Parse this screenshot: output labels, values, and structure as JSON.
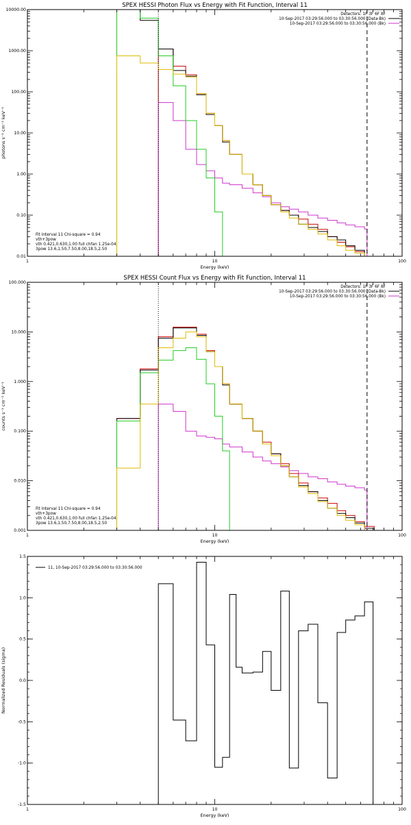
{
  "colors": {
    "data_minus_bk": "#000000",
    "background": "#cc33cc",
    "vth_3pow": "#cc0000",
    "vth": "#22cc22",
    "pow": "#ddbb00",
    "frame": "#000000"
  },
  "chart_data": [
    {
      "type": "line",
      "step": true,
      "title": "SPEX HESSI Photon Flux vs Energy with Fit Function, Interval 11",
      "xlabel": "Energy (keV)",
      "ylabel": "photons s⁻¹ cm⁻² keV⁻¹",
      "xscale": "log",
      "yscale": "log",
      "xlim": [
        1,
        100
      ],
      "ylim": [
        0.01,
        10000
      ],
      "xticks": [
        {
          "v": 1,
          "label": "1"
        },
        {
          "v": 10,
          "label": "10"
        },
        {
          "v": 100,
          "label": "100"
        }
      ],
      "yticks": [
        {
          "v": 0.01,
          "label": "0.01"
        },
        {
          "v": 0.1,
          "label": "0.10"
        },
        {
          "v": 1,
          "label": "1.00"
        },
        {
          "v": 10,
          "label": "10.00"
        },
        {
          "v": 100,
          "label": "100.00"
        },
        {
          "v": 1000,
          "label": "1000.00"
        },
        {
          "v": 10000,
          "label": "10000.00"
        }
      ],
      "vlines": [
        {
          "x": 5.0,
          "style": "dotted",
          "color": "#000000"
        },
        {
          "x": 65,
          "style": "dashed",
          "color": "#000000"
        }
      ],
      "legend_top": [
        {
          "text": "Detectors: 1F 3F 6F 8F",
          "color": "#000000"
        },
        {
          "text": "10-Sep-2017 03:29:56.000 to 03:30:56.000 (Data-Bk)",
          "color": "#000000"
        },
        {
          "text": "10-Sep-2017 03:29:56.000 to 03:30:56.000 (Bk)",
          "color": "#cc33cc"
        }
      ],
      "legend_bottom": [
        {
          "text": "Fit Interval 11   Chi-square = 0.94",
          "color": "#000000"
        },
        {
          "text": "vth+3pow",
          "color": "#cc0000"
        },
        {
          "text": "vth 0.421,0.630,1.00  full chfan 1.25e-04",
          "color": "#22cc22"
        },
        {
          "text": "3pow 13.6,1.50,7.50,8.00,18.5,2.50",
          "color": "#ddbb00"
        }
      ],
      "series": [
        {
          "color": "#cc0000",
          "edges": [
            5,
            6,
            7,
            8,
            9,
            10,
            11,
            12,
            14,
            16,
            18,
            20,
            22.5,
            25,
            28,
            31.5,
            35.5,
            40,
            45,
            50,
            56,
            63,
            71
          ],
          "values": [
            1100,
            420,
            260,
            90,
            30,
            15,
            6.5,
            3.0,
            1.0,
            0.55,
            0.3,
            0.18,
            0.13,
            0.1,
            0.08,
            0.06,
            0.045,
            0.03,
            0.022,
            0.017,
            0.013,
            0.01
          ]
        },
        {
          "color": "#000000",
          "edges": [
            3,
            4,
            5,
            6,
            7,
            8,
            9,
            10,
            11,
            12,
            14,
            16,
            18,
            20,
            22.5,
            25,
            28,
            31.5,
            35.5,
            40,
            45,
            50,
            56,
            63,
            71
          ],
          "values": [
            10000,
            5500,
            1100,
            330,
            240,
            85,
            28,
            15,
            6,
            3.0,
            1.0,
            0.55,
            0.3,
            0.18,
            0.13,
            0.1,
            0.06,
            0.05,
            0.04,
            0.03,
            0.025,
            0.018,
            0.014,
            0.01
          ]
        },
        {
          "color": "#cc33cc",
          "edges": [
            5,
            6,
            7,
            8,
            9,
            10,
            11,
            12,
            14,
            16,
            18,
            20,
            22.5,
            25,
            28,
            31.5,
            35.5,
            40,
            45,
            50,
            56,
            63,
            65
          ],
          "values": [
            55,
            20,
            4.0,
            1.7,
            1.2,
            0.8,
            0.6,
            0.55,
            0.45,
            0.35,
            0.28,
            0.2,
            0.16,
            0.14,
            0.12,
            0.1,
            0.085,
            0.075,
            0.065,
            0.058,
            0.052,
            0.046
          ]
        },
        {
          "color": "#22cc22",
          "edges": [
            3,
            4,
            5,
            6,
            7,
            8,
            9,
            10,
            11,
            12
          ],
          "values": [
            10000,
            6200,
            750,
            140,
            20,
            4.0,
            0.8,
            0.12,
            0.01
          ]
        },
        {
          "color": "#ddbb00",
          "edges": [
            3,
            4,
            5,
            6,
            7,
            8,
            9,
            10,
            11,
            12,
            14,
            16,
            18,
            20,
            22.5,
            25,
            28,
            31.5,
            35.5,
            40,
            45,
            50,
            56,
            63,
            71
          ],
          "values": [
            750,
            500,
            350,
            270,
            230,
            90,
            30,
            15,
            6.5,
            3.0,
            1.0,
            0.55,
            0.3,
            0.18,
            0.12,
            0.085,
            0.06,
            0.045,
            0.035,
            0.025,
            0.018,
            0.014,
            0.012,
            0.01
          ]
        }
      ]
    },
    {
      "type": "line",
      "step": true,
      "title": "SPEX HESSI Count Flux vs Energy with Fit Function, Interval 11",
      "xlabel": "Energy (keV)",
      "ylabel": "counts s⁻¹ cm⁻² keV⁻¹",
      "xscale": "log",
      "yscale": "log",
      "xlim": [
        1,
        100
      ],
      "ylim": [
        0.001,
        100
      ],
      "xticks": [
        {
          "v": 1,
          "label": "1"
        },
        {
          "v": 10,
          "label": "10"
        },
        {
          "v": 100,
          "label": "100"
        }
      ],
      "yticks": [
        {
          "v": 0.001,
          "label": "0.001"
        },
        {
          "v": 0.01,
          "label": "0.010"
        },
        {
          "v": 0.1,
          "label": "0.100"
        },
        {
          "v": 1,
          "label": "1.000"
        },
        {
          "v": 10,
          "label": "10.000"
        },
        {
          "v": 100,
          "label": "100.000"
        }
      ],
      "vlines": [
        {
          "x": 5.0,
          "style": "dotted",
          "color": "#000000"
        },
        {
          "x": 65,
          "style": "dashed",
          "color": "#000000"
        }
      ],
      "legend_top": [
        {
          "text": "Detectors: 1F 3F 6F 8F",
          "color": "#000000"
        },
        {
          "text": "10-Sep-2017 03:29:56.000 to 03:30:56.000 (Data-Bk)",
          "color": "#000000"
        },
        {
          "text": "10-Sep-2017 03:29:56.000 to 03:30:56.000 (Bk)",
          "color": "#cc33cc"
        }
      ],
      "legend_bottom": [
        {
          "text": "Fit Interval 11   Chi-square = 0.94",
          "color": "#000000"
        },
        {
          "text": "vth+3pow",
          "color": "#cc0000"
        },
        {
          "text": "vth 0.421,0.630,1.00  full chfan 1.25e-04",
          "color": "#22cc22"
        },
        {
          "text": "3pow 13.6,1.50,7.50,8.00,18.5,2.50",
          "color": "#ddbb00"
        }
      ],
      "series": [
        {
          "color": "#cc0000",
          "edges": [
            3,
            4,
            5,
            6,
            7,
            8,
            9,
            10,
            11,
            12,
            14,
            16,
            18,
            20,
            22.5,
            25,
            28,
            31.5,
            35.5,
            40,
            45,
            50,
            56,
            63,
            71
          ],
          "values": [
            0.18,
            1.8,
            8.0,
            12.5,
            12.5,
            9.0,
            4.2,
            2.0,
            0.9,
            0.35,
            0.18,
            0.1,
            0.06,
            0.035,
            0.022,
            0.014,
            0.009,
            0.006,
            0.0045,
            0.0035,
            0.0025,
            0.002,
            0.0015,
            0.0012
          ]
        },
        {
          "color": "#000000",
          "edges": [
            3,
            4,
            5,
            6,
            7,
            8,
            9,
            10,
            11,
            12,
            14,
            16,
            18,
            20,
            22.5,
            25,
            28,
            31.5,
            35.5,
            40,
            45,
            50,
            56,
            63,
            71
          ],
          "values": [
            0.18,
            1.7,
            7.5,
            12.0,
            12.0,
            8.5,
            4.0,
            2.0,
            0.85,
            0.35,
            0.18,
            0.1,
            0.055,
            0.035,
            0.02,
            0.012,
            0.008,
            0.006,
            0.004,
            0.0028,
            0.0022,
            0.0018,
            0.0014,
            0.0011
          ]
        },
        {
          "color": "#cc33cc",
          "edges": [
            5,
            6,
            7,
            8,
            9,
            10,
            11,
            12,
            14,
            16,
            18,
            20,
            22.5,
            25,
            28,
            31.5,
            35.5,
            40,
            45,
            50,
            56,
            63,
            65
          ],
          "values": [
            0.35,
            0.25,
            0.1,
            0.08,
            0.075,
            0.07,
            0.055,
            0.048,
            0.038,
            0.03,
            0.025,
            0.022,
            0.019,
            0.016,
            0.014,
            0.012,
            0.011,
            0.0095,
            0.0085,
            0.0078,
            0.0072,
            0.0065
          ]
        },
        {
          "color": "#22cc22",
          "edges": [
            3,
            4,
            5,
            6,
            7,
            8,
            9,
            10,
            11,
            12
          ],
          "values": [
            0.16,
            1.5,
            2.7,
            4.2,
            4.8,
            2.8,
            0.9,
            0.2,
            0.04,
            0.001
          ]
        },
        {
          "color": "#ddbb00",
          "edges": [
            3,
            4,
            5,
            6,
            7,
            8,
            9,
            10,
            11,
            12,
            14,
            16,
            18,
            20,
            22.5,
            25,
            28,
            31.5,
            35.5,
            40,
            45,
            50,
            56,
            63,
            71
          ],
          "values": [
            0.018,
            0.35,
            4.8,
            7.5,
            10.0,
            8.0,
            4.0,
            2.0,
            0.9,
            0.35,
            0.18,
            0.1,
            0.055,
            0.032,
            0.02,
            0.012,
            0.0075,
            0.0055,
            0.0038,
            0.0028,
            0.002,
            0.0016,
            0.0013,
            0.001
          ]
        }
      ]
    },
    {
      "type": "line",
      "step": true,
      "title": "",
      "xlabel": "Energy (keV)",
      "ylabel": "Normalized Residuals (sigma)",
      "xscale": "log",
      "yscale": "linear",
      "xlim": [
        1,
        100
      ],
      "ylim": [
        -1.5,
        1.5
      ],
      "xticks": [
        {
          "v": 1,
          "label": "1"
        },
        {
          "v": 10,
          "label": "10"
        },
        {
          "v": 100,
          "label": "100"
        }
      ],
      "yticks": [
        {
          "v": -1.5,
          "label": "-1.5"
        },
        {
          "v": -1.0,
          "label": "-1.0"
        },
        {
          "v": -0.5,
          "label": "-0.5"
        },
        {
          "v": 0.0,
          "label": "0.0"
        },
        {
          "v": 0.5,
          "label": "0.5"
        },
        {
          "v": 1.0,
          "label": "1.0"
        },
        {
          "v": 1.5,
          "label": "1.5"
        }
      ],
      "vlines": [],
      "legend_top_left": {
        "text": "11, 10-Sep-2017 03:29:56.000 to 03:30:56.000",
        "color": "#000000"
      },
      "series": [
        {
          "color": "#000000",
          "edges": [
            5,
            6,
            7,
            8,
            9,
            10,
            11,
            12,
            13,
            14,
            16,
            18,
            20,
            22.5,
            25,
            28,
            31.5,
            35.5,
            40,
            45,
            50,
            56,
            63,
            70
          ],
          "values": [
            1.17,
            -0.48,
            -0.73,
            1.43,
            0.43,
            -1.05,
            -0.93,
            1.04,
            0.16,
            0.09,
            0.1,
            0.35,
            -0.12,
            1.08,
            -1.06,
            0.6,
            0.68,
            -0.27,
            -1.18,
            0.58,
            0.73,
            0.78,
            0.95
          ],
          "drop_to": -1.5
        }
      ]
    }
  ]
}
